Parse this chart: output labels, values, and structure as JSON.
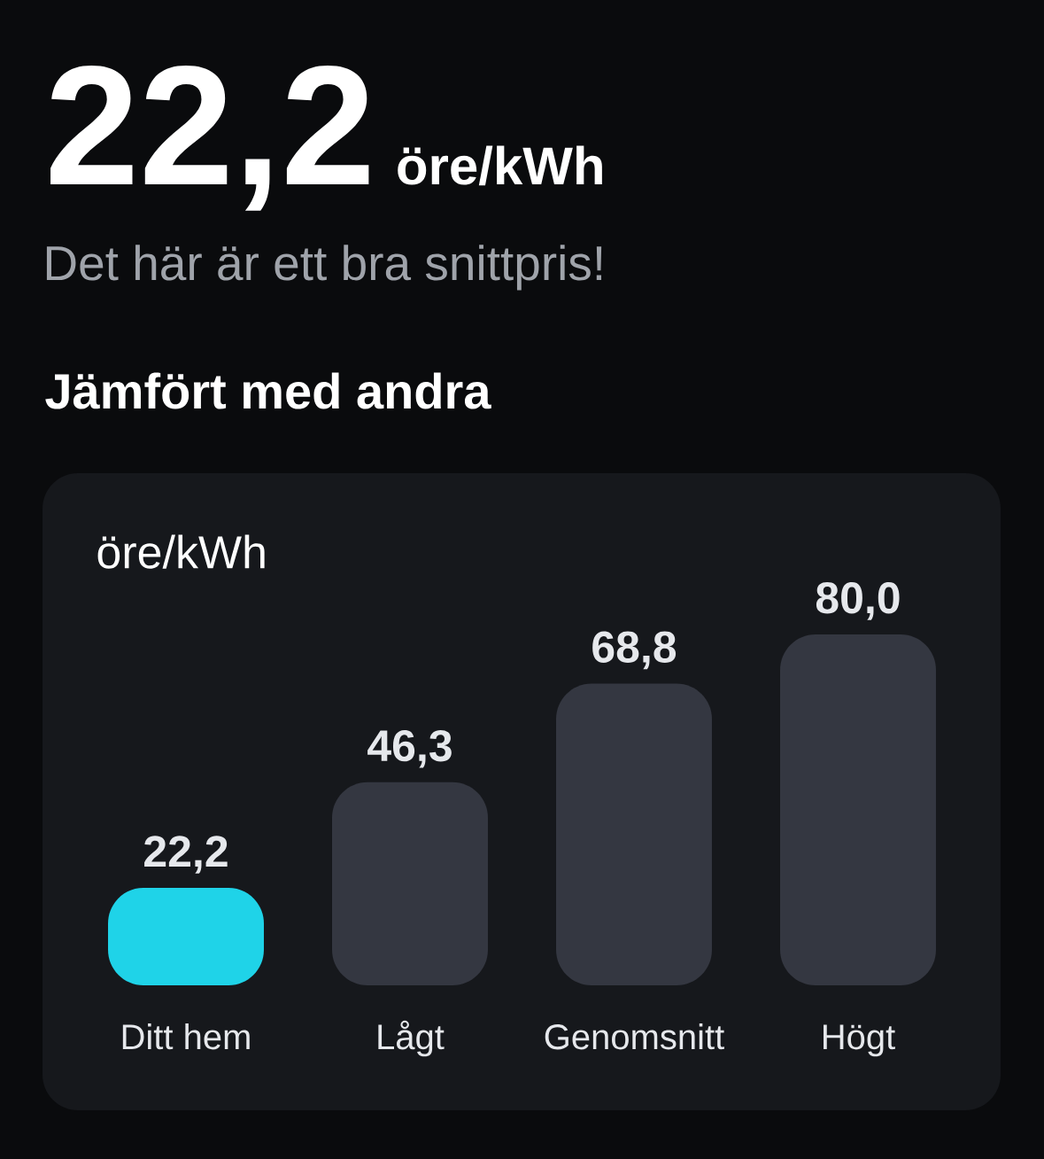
{
  "chart_data": {
    "type": "bar",
    "title": "Jämfört med andra",
    "ylabel": "öre/kWh",
    "annotations": [
      "22,2",
      "öre/kWh",
      "Det här är ett bra snittpris!"
    ],
    "categories": [
      "Ditt hem",
      "Lågt",
      "Genomsnitt",
      "Högt"
    ],
    "values": [
      22.2,
      46.3,
      68.8,
      80.0
    ],
    "value_labels": [
      "22,2",
      "46,3",
      "68,8",
      "80,0"
    ],
    "colors": [
      "#1fd3e8",
      "#343741",
      "#343741",
      "#343741"
    ]
  }
}
